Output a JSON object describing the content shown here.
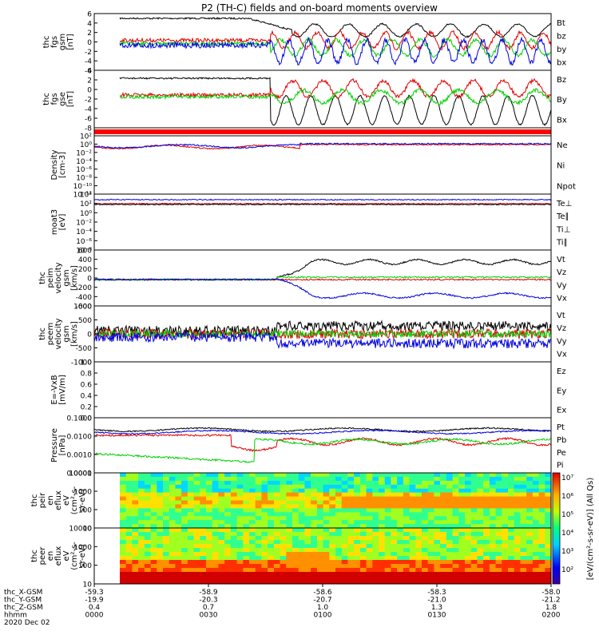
{
  "title": "P2 (TH-C) fields and on-board moments overview",
  "colors": {
    "black": "#000000",
    "red": "#e00000",
    "green": "#00d000",
    "blue": "#0000e0"
  },
  "chart_data": [
    {
      "type": "line",
      "ylabel": [
        "thc",
        "fgs",
        "gsm",
        "[nT]"
      ],
      "yticks": [
        "6",
        "4",
        "2",
        "0",
        "-2",
        "-4",
        "-6"
      ],
      "ylim": [
        -6,
        6
      ],
      "series": [
        {
          "name": "Bt",
          "color": "black"
        },
        {
          "name": "bz",
          "color": "red"
        },
        {
          "name": "by",
          "color": "green"
        },
        {
          "name": "bx",
          "color": "blue"
        }
      ]
    },
    {
      "type": "line",
      "ylabel": [
        "thc",
        "fgs",
        "gse",
        "[nT]"
      ],
      "yticks": [
        "4",
        "2",
        "0",
        "-2",
        "-4",
        "-6",
        "-8"
      ],
      "ylim": [
        -8,
        4
      ],
      "series": [
        {
          "name": "Bz",
          "color": "red"
        },
        {
          "name": "By",
          "color": "green"
        },
        {
          "name": "Bx",
          "color": "black"
        }
      ]
    },
    {
      "type": "line",
      "ylabel": [
        "Density",
        "[cm-3]"
      ],
      "yticks": [
        "10²",
        "10⁰",
        "10⁻²",
        "10⁻⁴",
        "10⁻⁶",
        "10⁻⁸",
        "10⁻¹⁰",
        "10⁻¹²"
      ],
      "series": [
        {
          "name": "Ne",
          "color": "red"
        },
        {
          "name": "Ni",
          "color": "black"
        },
        {
          "name": "Npot",
          "color": "blue"
        }
      ]
    },
    {
      "type": "line",
      "ylabel": [
        "moat3",
        "[eV]"
      ],
      "yticks": [
        "10⁴",
        "10²",
        "10⁰",
        "10⁻²",
        "10⁻⁴",
        "10⁻⁶",
        "10⁻⁸"
      ],
      "series": [
        {
          "name": "Te⊥",
          "color": "red"
        },
        {
          "name": "Te∥",
          "color": "black"
        },
        {
          "name": "Ti⊥",
          "color": "blue"
        },
        {
          "name": "Ti∥",
          "color": "green"
        }
      ]
    },
    {
      "type": "line",
      "ylabel": [
        "thc",
        "peim",
        "velocity",
        "gsm",
        "[km/s]"
      ],
      "yticks": [
        "600",
        "400",
        "200",
        "0",
        "-200",
        "-400",
        "-600"
      ],
      "ylim": [
        -600,
        600
      ],
      "series": [
        {
          "name": "Vt",
          "color": "black"
        },
        {
          "name": "Vz",
          "color": "red"
        },
        {
          "name": "Vy",
          "color": "green"
        },
        {
          "name": "Vx",
          "color": "blue"
        }
      ]
    },
    {
      "type": "line",
      "ylabel": [
        "thc",
        "peem",
        "velocity",
        "gsm",
        "[km/s]"
      ],
      "yticks": [
        "1000",
        "500",
        "0",
        "-500",
        "-1000"
      ],
      "ylim": [
        -1000,
        1000
      ],
      "series": [
        {
          "name": "Vt",
          "color": "black"
        },
        {
          "name": "Vz",
          "color": "red"
        },
        {
          "name": "Vy",
          "color": "green"
        },
        {
          "name": "Vx",
          "color": "blue"
        }
      ]
    },
    {
      "type": "line",
      "ylabel": [
        "E=-VxB",
        "[mV/m]"
      ],
      "yticks": [
        "1.0",
        "0.8",
        "0.6",
        "0.4",
        "0.2",
        "0.0"
      ],
      "ylim": [
        0,
        1
      ],
      "series": [
        {
          "name": "Ez",
          "color": "red"
        },
        {
          "name": "Ey",
          "color": "green"
        },
        {
          "name": "Ex",
          "color": "blue"
        }
      ]
    },
    {
      "type": "line",
      "ylabel": [
        "Pressure",
        "[nPa]"
      ],
      "yticks": [
        "0.1000",
        "0.0100",
        "0.0010",
        "0.0001"
      ],
      "series": [
        {
          "name": "Pt",
          "color": "black"
        },
        {
          "name": "Pb",
          "color": "red"
        },
        {
          "name": "Pe",
          "color": "green"
        },
        {
          "name": "Pi",
          "color": "blue"
        }
      ]
    },
    {
      "type": "heatmap",
      "ylabel": [
        "thc",
        "peir",
        "en",
        "eflux",
        "eV",
        "(cm²-s-",
        "sr-eV)"
      ],
      "yticks": [
        "10000",
        "1000",
        "100",
        "10"
      ]
    },
    {
      "type": "heatmap",
      "ylabel": [
        "thc",
        "peer",
        "en",
        "eflux",
        "eV",
        "(cm²-s-",
        "sr-eV)"
      ],
      "yticks": [
        "10000",
        "1000",
        "100",
        "10"
      ]
    }
  ],
  "colorbar": {
    "ticks": [
      "10⁷",
      "10⁶",
      "10⁵",
      "10⁴",
      "10³",
      "10²"
    ],
    "label": "[eV/(cm²-s-sr-eV)] (All Qs)"
  },
  "orbit": {
    "rows": [
      {
        "label": "thc_X-GSM",
        "values": [
          "-59.3",
          "-58.9",
          "-58.6",
          "-58.3",
          "-58.0"
        ]
      },
      {
        "label": "thc_Y-GSM",
        "values": [
          "-19.9",
          "-20.3",
          "-20.7",
          "-21.0",
          "-21.2"
        ]
      },
      {
        "label": "thc_Z-GSM",
        "values": [
          "0.4",
          "0.7",
          "1.0",
          "1.3",
          "1.8"
        ]
      },
      {
        "label": "hhmm",
        "values": [
          "0000",
          "0030",
          "0100",
          "0130",
          "0200"
        ]
      }
    ],
    "date": "2020 Dec 02"
  }
}
